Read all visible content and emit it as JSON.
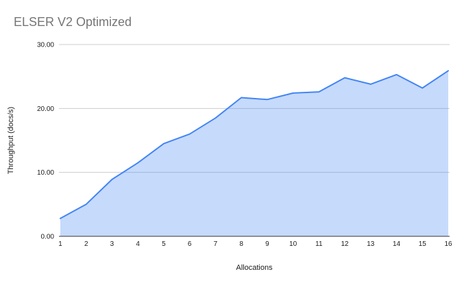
{
  "chart_data": {
    "type": "area",
    "title": "ELSER V2 Optimized",
    "xlabel": "Allocations",
    "ylabel": "Throughput (docs/s)",
    "x": [
      1,
      2,
      3,
      4,
      5,
      6,
      7,
      8,
      9,
      10,
      11,
      12,
      13,
      14,
      15,
      16
    ],
    "series": [
      {
        "name": "Throughput (docs/s)",
        "values": [
          2.8,
          5.0,
          8.9,
          11.5,
          14.5,
          16.0,
          18.5,
          21.7,
          21.4,
          22.4,
          22.6,
          24.8,
          23.8,
          25.3,
          23.2,
          25.9
        ]
      }
    ],
    "xticks": [
      "1",
      "2",
      "3",
      "4",
      "5",
      "6",
      "7",
      "8",
      "9",
      "10",
      "11",
      "12",
      "13",
      "14",
      "15",
      "16"
    ],
    "yticks": [
      "0.00",
      "10.00",
      "20.00",
      "30.00"
    ],
    "ytick_values": [
      0,
      10,
      20,
      30
    ],
    "ylim": [
      0,
      30
    ],
    "xlim": [
      1,
      16
    ],
    "grid": "horizontal",
    "legend_position": "none",
    "colors": {
      "line": "#4285f4",
      "fill": "rgba(66,133,244,0.3)",
      "gridline": "#cccccc",
      "axis_line": "#333333",
      "title_text": "#757575",
      "tick_text": "#1a1a1a"
    }
  }
}
